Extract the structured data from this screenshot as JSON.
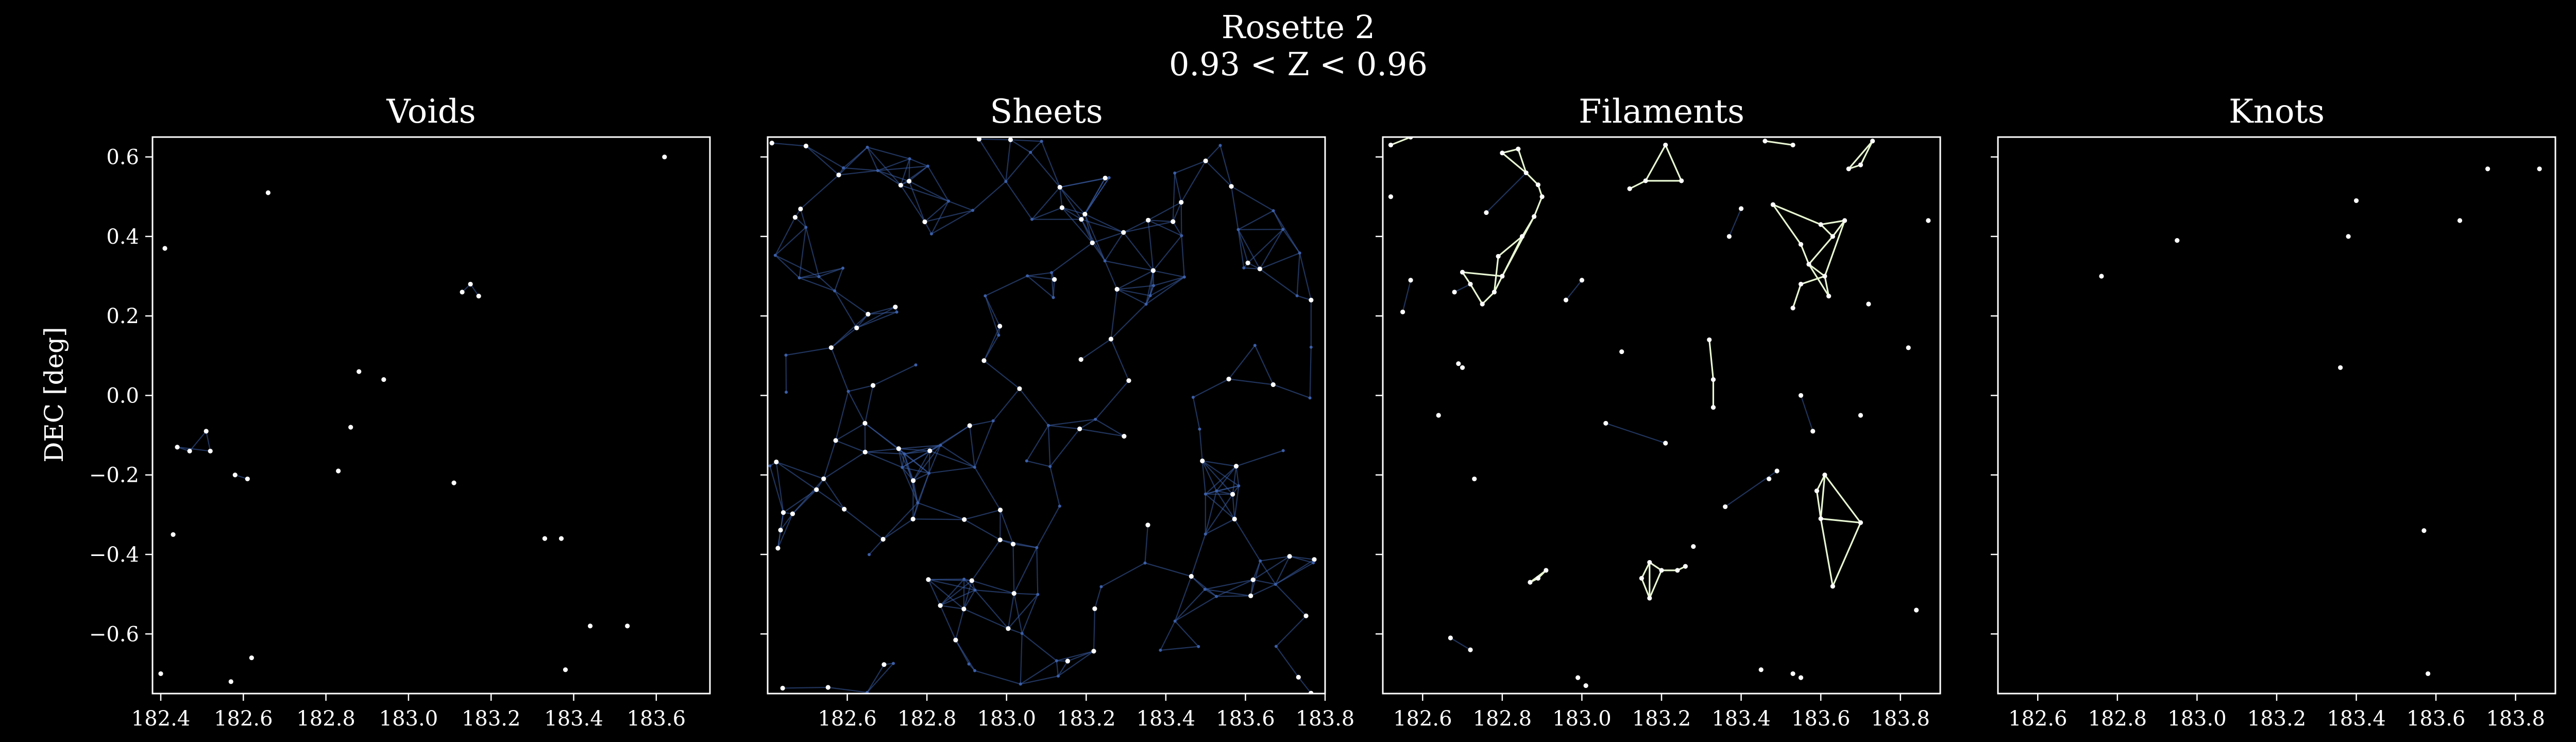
{
  "figure": {
    "title_line1": "Rosette 2",
    "title_line2": "0.93 < Z < 0.96",
    "ylabel": "DEC [deg]"
  },
  "colors": {
    "background": "#000000",
    "axes": "#ffffff",
    "galaxy_point": "#ffffff",
    "weak_edge": "#3b5fa8",
    "strong_edge": "#e8f7d2"
  },
  "chart_data": [
    {
      "type": "scatter",
      "title": "Voids",
      "xlim": [
        182.38,
        183.73
      ],
      "ylim": [
        -0.75,
        0.65
      ],
      "xticks": [
        182.4,
        182.6,
        182.8,
        183.0,
        183.2,
        183.4,
        183.6
      ],
      "yticks": [
        0.6,
        0.4,
        0.2,
        0.0,
        -0.2,
        -0.4,
        -0.6
      ],
      "ytick_labels": [
        "0.6",
        "0.4",
        "0.2",
        "0.0",
        "−0.2",
        "−0.4",
        "−0.6"
      ],
      "points": [
        [
          182.66,
          0.51
        ],
        [
          183.62,
          0.6
        ],
        [
          182.88,
          0.06
        ],
        [
          182.94,
          0.04
        ],
        [
          182.86,
          -0.08
        ],
        [
          182.41,
          0.37
        ],
        [
          182.44,
          -0.13
        ],
        [
          182.47,
          -0.14
        ],
        [
          182.51,
          -0.09
        ],
        [
          182.52,
          -0.14
        ],
        [
          182.58,
          -0.2
        ],
        [
          182.61,
          -0.21
        ],
        [
          182.83,
          -0.19
        ],
        [
          183.11,
          -0.22
        ],
        [
          183.13,
          0.26
        ],
        [
          183.15,
          0.28
        ],
        [
          183.17,
          0.25
        ],
        [
          182.4,
          -0.7
        ],
        [
          182.43,
          -0.35
        ],
        [
          182.62,
          -0.66
        ],
        [
          182.57,
          -0.72
        ],
        [
          183.33,
          -0.36
        ],
        [
          183.37,
          -0.36
        ],
        [
          183.44,
          -0.58
        ],
        [
          183.53,
          -0.58
        ],
        [
          183.38,
          -0.69
        ]
      ],
      "edges": [
        [
          6,
          7
        ],
        [
          7,
          8
        ],
        [
          8,
          9
        ],
        [
          6,
          9
        ],
        [
          14,
          15
        ],
        [
          15,
          16
        ],
        [
          10,
          11
        ]
      ],
      "strong_edges": []
    },
    {
      "type": "scatter",
      "title": "Sheets",
      "xlim": [
        182.4,
        183.8
      ],
      "ylim": [
        -0.75,
        0.65
      ],
      "xticks": [
        182.6,
        182.8,
        183.0,
        183.2,
        183.4,
        183.6,
        183.8
      ],
      "yticks": [
        0.6,
        0.4,
        0.2,
        0.0,
        -0.2,
        -0.4,
        -0.6
      ],
      "ytick_labels": [
        "",
        "",
        "",
        "",
        "",
        "",
        ""
      ],
      "points": [],
      "edges": [],
      "strong_edges": [],
      "generated_points": 180,
      "connect_radius": 0.13,
      "seed": 7
    },
    {
      "type": "scatter",
      "title": "Filaments",
      "xlim": [
        182.5,
        183.9
      ],
      "ylim": [
        -0.75,
        0.65
      ],
      "xticks": [
        182.6,
        182.8,
        183.0,
        183.2,
        183.4,
        183.6,
        183.8
      ],
      "yticks": [
        0.6,
        0.4,
        0.2,
        0.0,
        -0.2,
        -0.4,
        -0.6
      ],
      "ytick_labels": [
        "",
        "",
        "",
        "",
        "",
        "",
        ""
      ],
      "points": [
        [
          182.52,
          0.63
        ],
        [
          182.57,
          0.65
        ],
        [
          182.8,
          0.61
        ],
        [
          182.86,
          0.56
        ],
        [
          182.84,
          0.62
        ],
        [
          182.89,
          0.53
        ],
        [
          182.9,
          0.5
        ],
        [
          182.88,
          0.45
        ],
        [
          182.85,
          0.4
        ],
        [
          182.8,
          0.3
        ],
        [
          182.78,
          0.26
        ],
        [
          182.75,
          0.23
        ],
        [
          182.72,
          0.28
        ],
        [
          182.7,
          0.31
        ],
        [
          182.79,
          0.35
        ],
        [
          183.12,
          0.52
        ],
        [
          183.16,
          0.54
        ],
        [
          183.21,
          0.63
        ],
        [
          183.25,
          0.54
        ],
        [
          183.46,
          0.64
        ],
        [
          183.53,
          0.63
        ],
        [
          183.67,
          0.57
        ],
        [
          183.73,
          0.64
        ],
        [
          183.7,
          0.58
        ],
        [
          183.6,
          0.43
        ],
        [
          183.63,
          0.4
        ],
        [
          183.66,
          0.44
        ],
        [
          183.57,
          0.33
        ],
        [
          183.61,
          0.3
        ],
        [
          183.62,
          0.25
        ],
        [
          183.55,
          0.28
        ],
        [
          183.48,
          0.48
        ],
        [
          183.55,
          0.38
        ],
        [
          183.53,
          0.22
        ],
        [
          183.32,
          0.14
        ],
        [
          183.33,
          0.04
        ],
        [
          183.33,
          -0.03
        ],
        [
          183.61,
          -0.2
        ],
        [
          183.7,
          -0.32
        ],
        [
          183.63,
          -0.48
        ],
        [
          183.6,
          -0.31
        ],
        [
          183.59,
          -0.24
        ],
        [
          182.87,
          -0.47
        ],
        [
          182.91,
          -0.44
        ],
        [
          182.89,
          -0.46
        ],
        [
          183.15,
          -0.46
        ],
        [
          183.17,
          -0.51
        ],
        [
          183.2,
          -0.44
        ],
        [
          183.24,
          -0.44
        ],
        [
          183.26,
          -0.43
        ],
        [
          183.17,
          -0.42
        ],
        [
          182.73,
          -0.21
        ],
        [
          182.7,
          0.07
        ],
        [
          182.69,
          0.08
        ],
        [
          182.57,
          0.29
        ],
        [
          182.55,
          0.21
        ],
        [
          182.68,
          0.26
        ],
        [
          182.76,
          0.46
        ],
        [
          183.4,
          0.47
        ],
        [
          183.37,
          0.4
        ],
        [
          182.99,
          -0.71
        ],
        [
          183.01,
          -0.73
        ],
        [
          183.45,
          -0.69
        ],
        [
          183.53,
          -0.7
        ],
        [
          183.55,
          -0.71
        ],
        [
          183.55,
          0.0
        ],
        [
          183.58,
          -0.09
        ],
        [
          183.49,
          -0.19
        ],
        [
          183.47,
          -0.21
        ],
        [
          183.06,
          -0.07
        ],
        [
          183.0,
          0.29
        ],
        [
          182.96,
          0.24
        ],
        [
          182.64,
          -0.05
        ],
        [
          183.21,
          -0.12
        ],
        [
          183.72,
          0.23
        ],
        [
          183.82,
          0.12
        ],
        [
          183.1,
          0.11
        ],
        [
          183.28,
          -0.38
        ],
        [
          183.84,
          -0.54
        ],
        [
          182.72,
          -0.64
        ],
        [
          182.67,
          -0.61
        ],
        [
          183.87,
          0.44
        ],
        [
          182.52,
          0.5
        ],
        [
          183.36,
          -0.28
        ],
        [
          183.7,
          -0.05
        ]
      ],
      "edges": [
        [
          56,
          12
        ],
        [
          57,
          3
        ],
        [
          58,
          59
        ],
        [
          69,
          73
        ],
        [
          83,
          67
        ],
        [
          79,
          80
        ],
        [
          54,
          55
        ],
        [
          70,
          71
        ],
        [
          65,
          66
        ]
      ],
      "strong_edges": [
        [
          0,
          1
        ],
        [
          2,
          3
        ],
        [
          3,
          4
        ],
        [
          3,
          5
        ],
        [
          2,
          4
        ],
        [
          5,
          6
        ],
        [
          6,
          7
        ],
        [
          7,
          8
        ],
        [
          8,
          9
        ],
        [
          7,
          9
        ],
        [
          9,
          10
        ],
        [
          10,
          11
        ],
        [
          11,
          12
        ],
        [
          12,
          13
        ],
        [
          10,
          14
        ],
        [
          8,
          14
        ],
        [
          9,
          13
        ],
        [
          15,
          16
        ],
        [
          16,
          17
        ],
        [
          17,
          18
        ],
        [
          16,
          18
        ],
        [
          19,
          20
        ],
        [
          21,
          22
        ],
        [
          22,
          23
        ],
        [
          21,
          23
        ],
        [
          24,
          25
        ],
        [
          25,
          26
        ],
        [
          24,
          26
        ],
        [
          25,
          27
        ],
        [
          27,
          28
        ],
        [
          28,
          29
        ],
        [
          27,
          29
        ],
        [
          28,
          30
        ],
        [
          24,
          31
        ],
        [
          31,
          32
        ],
        [
          32,
          27
        ],
        [
          26,
          28
        ],
        [
          30,
          33
        ],
        [
          34,
          35
        ],
        [
          35,
          36
        ],
        [
          37,
          38
        ],
        [
          38,
          39
        ],
        [
          39,
          40
        ],
        [
          37,
          40
        ],
        [
          40,
          41
        ],
        [
          37,
          41
        ],
        [
          38,
          40
        ],
        [
          42,
          43
        ],
        [
          43,
          44
        ],
        [
          42,
          44
        ],
        [
          45,
          46
        ],
        [
          46,
          47
        ],
        [
          47,
          48
        ],
        [
          48,
          49
        ],
        [
          45,
          50
        ],
        [
          50,
          47
        ],
        [
          46,
          50
        ]
      ]
    },
    {
      "type": "scatter",
      "title": "Knots",
      "xlim": [
        182.5,
        183.9
      ],
      "ylim": [
        -0.75,
        0.65
      ],
      "xticks": [
        182.6,
        182.8,
        183.0,
        183.2,
        183.4,
        183.6,
        183.8
      ],
      "yticks": [
        0.6,
        0.4,
        0.2,
        0.0,
        -0.2,
        -0.4,
        -0.6
      ],
      "ytick_labels": [
        "",
        "",
        "",
        "",
        "",
        "",
        ""
      ],
      "points": [
        [
          182.95,
          0.39
        ],
        [
          183.73,
          0.57
        ],
        [
          183.86,
          0.57
        ],
        [
          183.66,
          0.44
        ],
        [
          182.76,
          0.3
        ],
        [
          183.4,
          0.49
        ],
        [
          183.38,
          0.4
        ],
        [
          183.57,
          -0.34
        ],
        [
          183.36,
          0.07
        ],
        [
          183.58,
          -0.7
        ]
      ],
      "edges": [],
      "strong_edges": []
    }
  ]
}
